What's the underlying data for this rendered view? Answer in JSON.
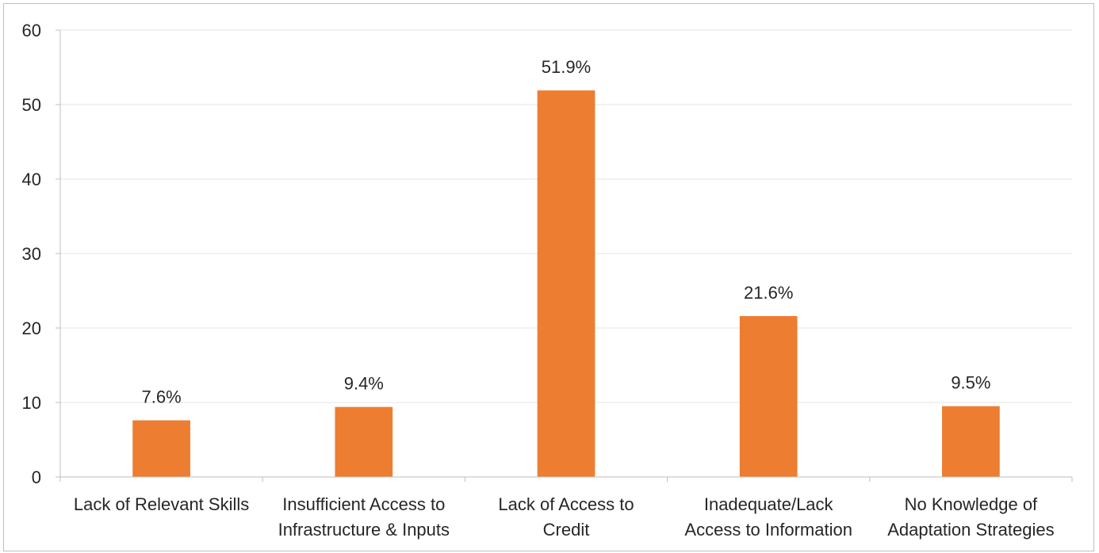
{
  "chart_data": {
    "type": "bar",
    "categories": [
      [
        "Lack of Relevant Skills"
      ],
      [
        "Insufficient Access to",
        "Infrastructure & Inputs"
      ],
      [
        "Lack of Access to",
        "Credit"
      ],
      [
        "Inadequate/Lack",
        "Access to Information"
      ],
      [
        "No Knowledge of",
        "Adaptation Strategies"
      ]
    ],
    "values": [
      7.6,
      9.4,
      51.9,
      21.6,
      9.5
    ],
    "data_labels": [
      "7.6%",
      "9.4%",
      "51.9%",
      "21.6%",
      "9.5%"
    ],
    "ylim": [
      0,
      60
    ],
    "yticks": [
      0,
      10,
      20,
      30,
      40,
      50,
      60
    ],
    "grid": true,
    "colors": {
      "bar": "#ED7D31",
      "grid": "#e6e6e6",
      "axis": "#bfbfbf",
      "text": "#262626"
    }
  }
}
